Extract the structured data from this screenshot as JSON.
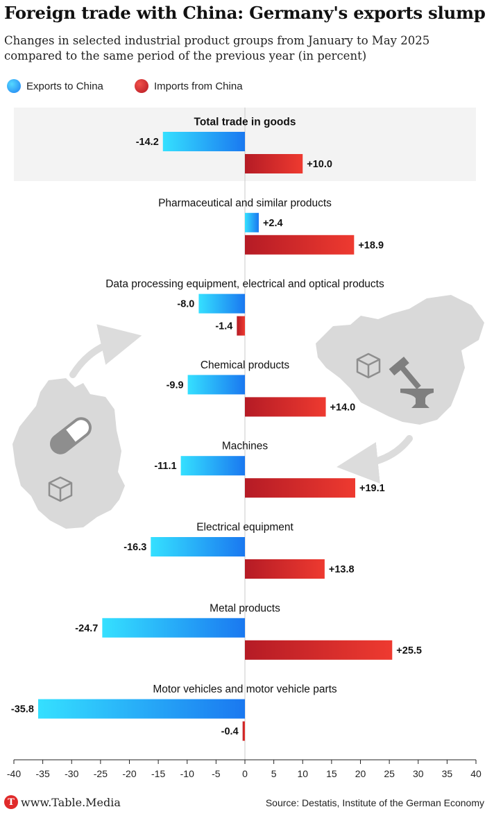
{
  "header": {
    "title": "Foreign trade with China: Germany's exports slump",
    "subtitle": "Changes in selected industrial product groups from January to May 2025 compared to the same period of the previous year (in percent)"
  },
  "legend": {
    "exports_label": "Exports to China",
    "imports_label": "Imports from China"
  },
  "chart_data": {
    "type": "bar",
    "orientation": "horizontal",
    "xlim": [
      -40,
      40
    ],
    "xticks": [
      -40,
      -35,
      -30,
      -25,
      -20,
      -15,
      -10,
      -5,
      0,
      5,
      10,
      15,
      20,
      25,
      30,
      35,
      40
    ],
    "groups": [
      {
        "label": "Total trade in goods",
        "exports": -14.2,
        "imports": 10.0,
        "exports_label": "-14.2",
        "imports_label": "+10.0",
        "highlight": true
      },
      {
        "label": "Pharmaceutical and similar products",
        "exports": 2.4,
        "imports": 18.9,
        "exports_label": "+2.4",
        "imports_label": "+18.9"
      },
      {
        "label": "Data processing equipment, electrical and optical products",
        "exports": -8.0,
        "imports": -1.4,
        "exports_label": "-8.0",
        "imports_label": "-1.4"
      },
      {
        "label": "Chemical products",
        "exports": -9.9,
        "imports": 14.0,
        "exports_label": "-9.9",
        "imports_label": "+14.0"
      },
      {
        "label": "Machines",
        "exports": -11.1,
        "imports": 19.1,
        "exports_label": "-11.1",
        "imports_label": "+19.1"
      },
      {
        "label": "Electrical equipment",
        "exports": -16.3,
        "imports": 13.8,
        "exports_label": "-16.3",
        "imports_label": "+13.8"
      },
      {
        "label": "Metal products",
        "exports": -24.7,
        "imports": 25.5,
        "exports_label": "-24.7",
        "imports_label": "+25.5"
      },
      {
        "label": "Motor vehicles and motor vehicle parts",
        "exports": -35.8,
        "imports": -0.4,
        "exports_label": "-35.8",
        "imports_label": "-0.4"
      }
    ],
    "colors": {
      "exports_start": "#35e0ff",
      "exports_end": "#1a78f0",
      "imports_start": "#b51b25",
      "imports_end": "#ee3a30"
    }
  },
  "footer": {
    "brand": "www.Table.Media",
    "logo_letter": "T",
    "source": "Source: Destatis, Institute of the German Economy"
  }
}
